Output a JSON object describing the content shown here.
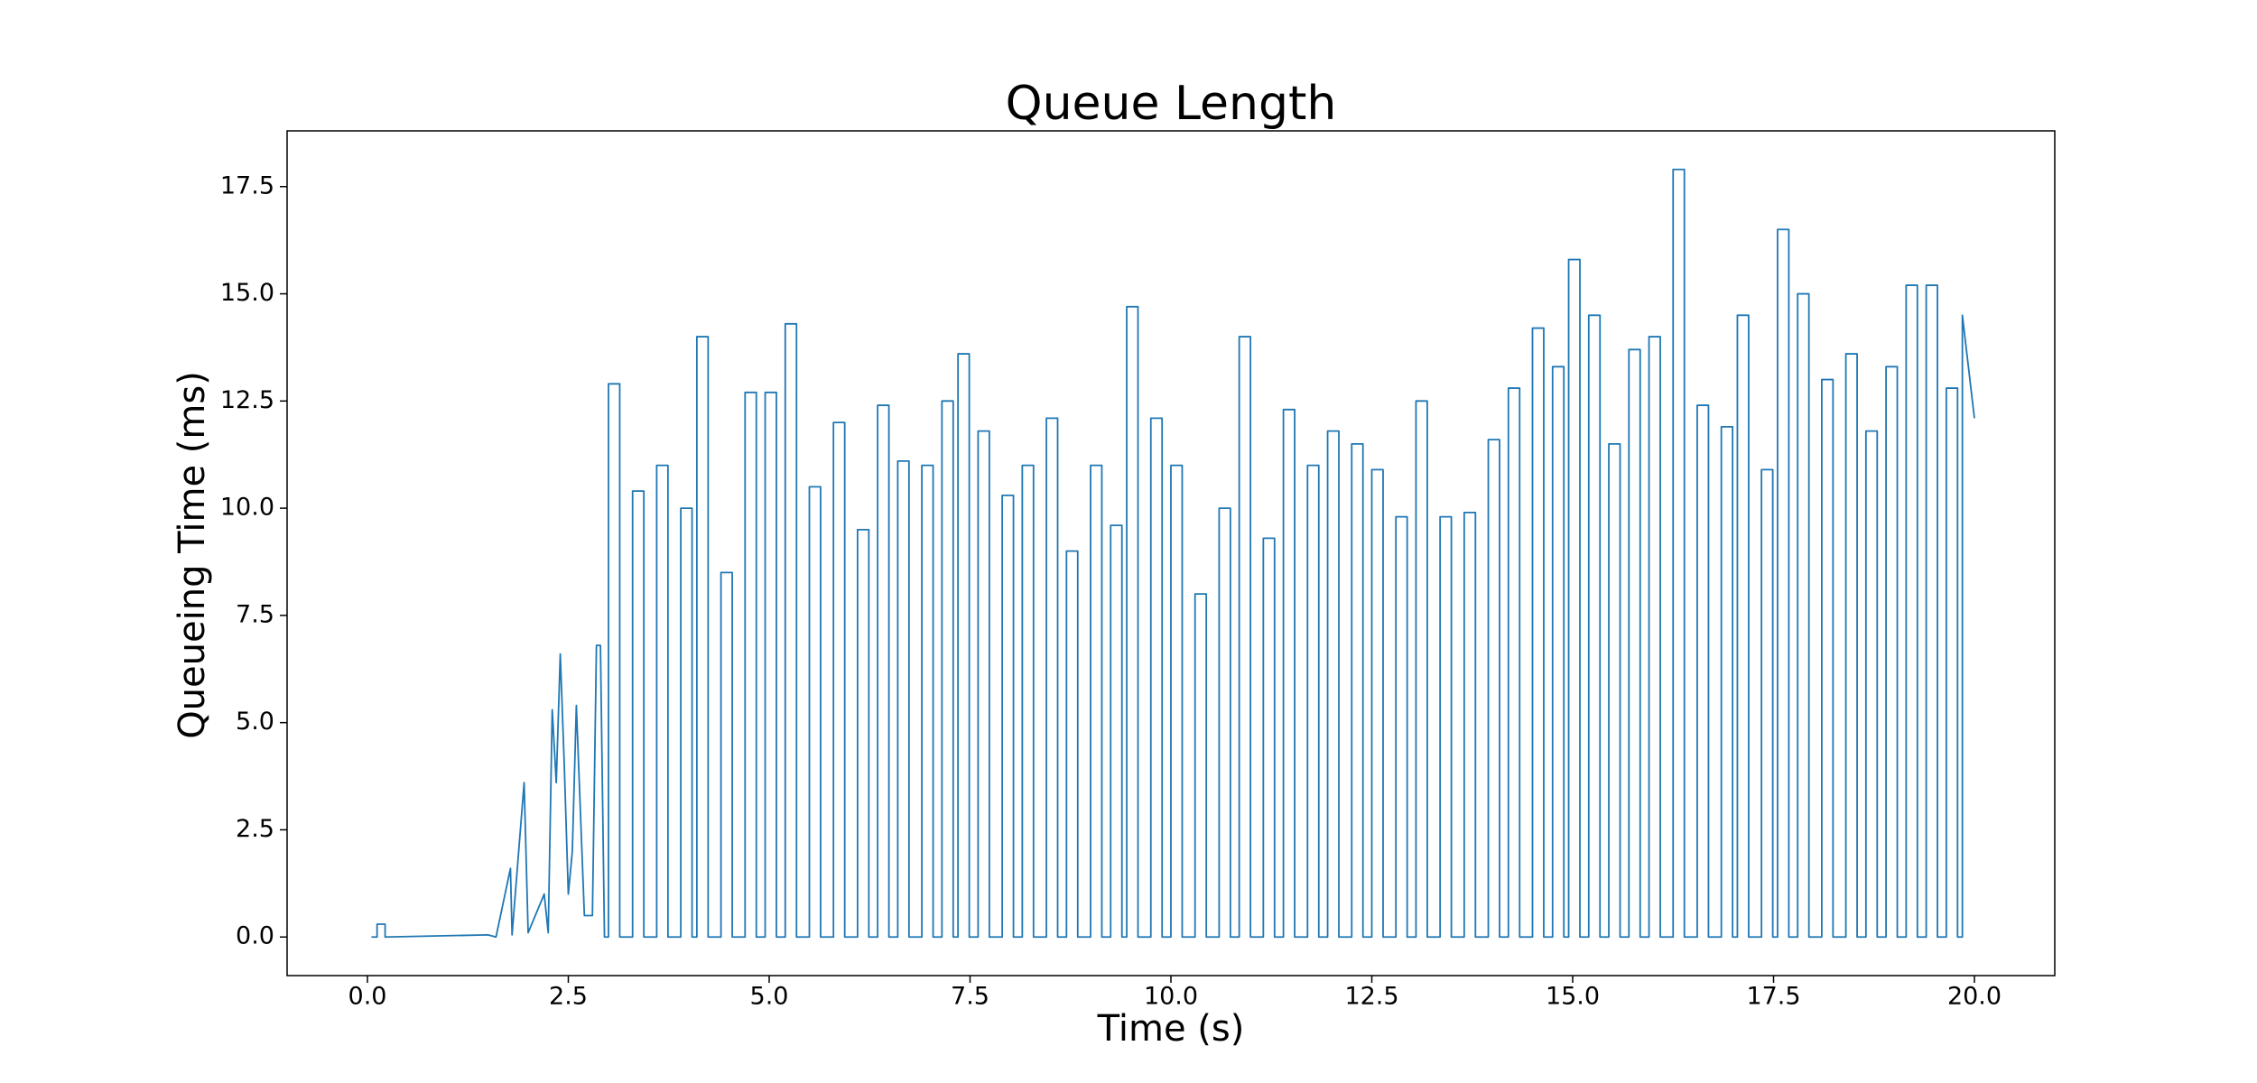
{
  "chart_data": {
    "type": "line",
    "title": "Queue Length",
    "xlabel": "Time (s)",
    "ylabel": "Queueing Time (ms)",
    "x": [
      0.05,
      0.12,
      0.12,
      0.22,
      0.22,
      1.5,
      1.6,
      1.78,
      1.8,
      1.95,
      2.0,
      2.2,
      2.25,
      2.3,
      2.35,
      2.4,
      2.45,
      2.5,
      2.55,
      2.6,
      2.7,
      2.8,
      2.85,
      2.9,
      2.95,
      3.0,
      3.0,
      3.14,
      3.14,
      3.3,
      3.3,
      3.44,
      3.44,
      3.6,
      3.6,
      3.74,
      3.74,
      3.9,
      3.9,
      4.04,
      4.04,
      4.1,
      4.1,
      4.24,
      4.24,
      4.4,
      4.4,
      4.54,
      4.54,
      4.7,
      4.7,
      4.84,
      4.84,
      4.95,
      4.95,
      5.09,
      5.09,
      5.2,
      5.2,
      5.34,
      5.34,
      5.5,
      5.5,
      5.64,
      5.64,
      5.8,
      5.8,
      5.94,
      5.94,
      6.1,
      6.1,
      6.24,
      6.24,
      6.35,
      6.35,
      6.49,
      6.49,
      6.6,
      6.6,
      6.74,
      6.74,
      6.9,
      6.9,
      7.04,
      7.04,
      7.15,
      7.15,
      7.29,
      7.29,
      7.35,
      7.35,
      7.49,
      7.49,
      7.6,
      7.6,
      7.74,
      7.74,
      7.9,
      7.9,
      8.04,
      8.04,
      8.15,
      8.15,
      8.29,
      8.29,
      8.45,
      8.45,
      8.59,
      8.59,
      8.7,
      8.7,
      8.84,
      8.84,
      9.0,
      9.0,
      9.14,
      9.14,
      9.25,
      9.25,
      9.39,
      9.39,
      9.45,
      9.45,
      9.59,
      9.59,
      9.75,
      9.75,
      9.89,
      9.89,
      10.0,
      10.0,
      10.14,
      10.14,
      10.3,
      10.3,
      10.44,
      10.44,
      10.6,
      10.6,
      10.74,
      10.74,
      10.85,
      10.85,
      10.99,
      10.99,
      11.15,
      11.15,
      11.29,
      11.29,
      11.4,
      11.4,
      11.54,
      11.54,
      11.7,
      11.7,
      11.84,
      11.84,
      11.95,
      11.95,
      12.09,
      12.09,
      12.25,
      12.25,
      12.39,
      12.39,
      12.5,
      12.5,
      12.64,
      12.64,
      12.8,
      12.8,
      12.94,
      12.94,
      13.05,
      13.05,
      13.19,
      13.19,
      13.35,
      13.35,
      13.49,
      13.49,
      13.65,
      13.65,
      13.79,
      13.79,
      13.95,
      13.95,
      14.09,
      14.09,
      14.2,
      14.2,
      14.34,
      14.34,
      14.5,
      14.5,
      14.64,
      14.64,
      14.75,
      14.75,
      14.89,
      14.89,
      14.95,
      14.95,
      15.09,
      15.09,
      15.2,
      15.2,
      15.34,
      15.34,
      15.45,
      15.45,
      15.59,
      15.59,
      15.7,
      15.7,
      15.84,
      15.84,
      15.95,
      15.95,
      16.09,
      16.09,
      16.25,
      16.25,
      16.39,
      16.39,
      16.55,
      16.55,
      16.69,
      16.69,
      16.85,
      16.85,
      16.99,
      16.99,
      17.05,
      17.05,
      17.19,
      17.19,
      17.35,
      17.35,
      17.49,
      17.49,
      17.55,
      17.55,
      17.69,
      17.69,
      17.8,
      17.8,
      17.94,
      17.94,
      18.1,
      18.1,
      18.24,
      18.24,
      18.4,
      18.4,
      18.54,
      18.54,
      18.65,
      18.65,
      18.79,
      18.79,
      18.9,
      18.9,
      19.04,
      19.04,
      19.15,
      19.15,
      19.29,
      19.29,
      19.4,
      19.4,
      19.54,
      19.54,
      19.65,
      19.65,
      19.79,
      19.79,
      19.85,
      19.85,
      20.0
    ],
    "series": [
      {
        "color": "#1f77b4",
        "values": [
          0,
          0,
          0.3,
          0.3,
          0,
          0.05,
          0,
          1.6,
          0.05,
          3.6,
          0.1,
          1.0,
          0.1,
          5.3,
          3.6,
          6.6,
          4.0,
          1.0,
          2.0,
          5.4,
          0.5,
          0.5,
          6.8,
          6.8,
          0,
          0,
          12.9,
          12.9,
          0,
          0,
          10.4,
          10.4,
          0,
          0,
          11.0,
          11.0,
          0,
          0,
          10.0,
          10.0,
          0,
          0,
          14.0,
          14.0,
          0,
          0,
          8.5,
          8.5,
          0,
          0,
          12.7,
          12.7,
          0,
          0,
          12.7,
          12.7,
          0,
          0,
          14.3,
          14.3,
          0,
          0,
          10.5,
          10.5,
          0,
          0,
          12.0,
          12.0,
          0,
          0,
          9.5,
          9.5,
          0,
          0,
          12.4,
          12.4,
          0,
          0,
          11.1,
          11.1,
          0,
          0,
          11.0,
          11.0,
          0,
          0,
          12.5,
          12.5,
          0,
          0,
          13.6,
          13.6,
          0,
          0,
          11.8,
          11.8,
          0,
          0,
          10.3,
          10.3,
          0,
          0,
          11.0,
          11.0,
          0,
          0,
          12.1,
          12.1,
          0,
          0,
          9.0,
          9.0,
          0,
          0,
          11.0,
          11.0,
          0,
          0,
          9.6,
          9.6,
          0,
          0,
          14.7,
          14.7,
          0,
          0,
          12.1,
          12.1,
          0,
          0,
          11.0,
          11.0,
          0,
          0,
          8.0,
          8.0,
          0,
          0,
          10.0,
          10.0,
          0,
          0,
          14.0,
          14.0,
          0,
          0,
          9.3,
          9.3,
          0,
          0,
          12.3,
          12.3,
          0,
          0,
          11.0,
          11.0,
          0,
          0,
          11.8,
          11.8,
          0,
          0,
          11.5,
          11.5,
          0,
          0,
          10.9,
          10.9,
          0,
          0,
          9.8,
          9.8,
          0,
          0,
          12.5,
          12.5,
          0,
          0,
          9.8,
          9.8,
          0,
          0,
          9.9,
          9.9,
          0,
          0,
          11.6,
          11.6,
          0,
          0,
          12.8,
          12.8,
          0,
          0,
          14.2,
          14.2,
          0,
          0,
          13.3,
          13.3,
          0,
          0,
          15.8,
          15.8,
          0,
          0,
          14.5,
          14.5,
          0,
          0,
          11.5,
          11.5,
          0,
          0,
          13.7,
          13.7,
          0,
          0,
          14.0,
          14.0,
          0,
          0,
          17.9,
          17.9,
          0,
          0,
          12.4,
          12.4,
          0,
          0,
          11.9,
          11.9,
          0,
          0,
          14.5,
          14.5,
          0,
          0,
          10.9,
          10.9,
          0,
          0,
          16.5,
          16.5,
          0,
          0,
          15.0,
          15.0,
          0,
          0,
          13.0,
          13.0,
          0,
          0,
          13.6,
          13.6,
          0,
          0,
          11.8,
          11.8,
          0,
          0,
          13.3,
          13.3,
          0,
          0,
          15.2,
          15.2,
          0,
          0,
          15.2,
          15.2,
          0,
          0,
          12.8,
          12.8,
          0,
          0,
          14.5,
          12.1
        ]
      }
    ],
    "xlim": [
      -1,
      21
    ],
    "ylim": [
      -0.9,
      18.8
    ],
    "xticks": [
      {
        "value": 0,
        "label": "0.0"
      },
      2.5,
      {
        "value": 5,
        "label": "5.0"
      },
      7.5,
      {
        "value": 10,
        "label": "10.0"
      },
      12.5,
      {
        "value": 15,
        "label": "15.0"
      },
      17.5,
      {
        "value": 20,
        "label": "20.0"
      }
    ],
    "yticks": [
      {
        "value": 0,
        "label": "0.0"
      },
      2.5,
      {
        "value": 5,
        "label": "5.0"
      },
      7.5,
      {
        "value": 10,
        "label": "10.0"
      },
      12.5,
      {
        "value": 15,
        "label": "15.0"
      },
      17.5
    ]
  }
}
